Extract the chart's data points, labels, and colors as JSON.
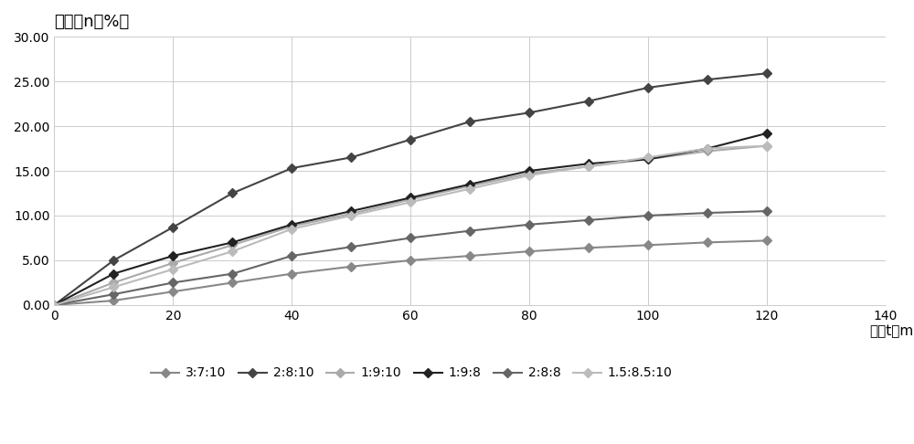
{
  "title_y": "析水率n（%）",
  "xlabel": "时间t（min）",
  "x_ticks": [
    0,
    20,
    40,
    60,
    80,
    100,
    120,
    140
  ],
  "y_ticks": [
    0.0,
    5.0,
    10.0,
    15.0,
    20.0,
    25.0,
    30.0
  ],
  "xlim": [
    0,
    140
  ],
  "ylim": [
    0,
    30
  ],
  "series": [
    {
      "label": "3:7:10",
      "color": "#888888",
      "marker": "D",
      "markersize": 5,
      "linewidth": 1.5,
      "x": [
        0,
        10,
        20,
        30,
        40,
        50,
        60,
        70,
        80,
        90,
        100,
        110,
        120
      ],
      "y": [
        0,
        0.5,
        1.5,
        2.5,
        3.5,
        4.3,
        5.0,
        5.5,
        6.0,
        6.4,
        6.7,
        7.0,
        7.2
      ]
    },
    {
      "label": "2:8:10",
      "color": "#444444",
      "marker": "D",
      "markersize": 5,
      "linewidth": 1.5,
      "x": [
        0,
        10,
        20,
        30,
        40,
        50,
        60,
        70,
        80,
        90,
        100,
        110,
        120
      ],
      "y": [
        0,
        5.0,
        8.7,
        12.5,
        15.3,
        16.5,
        18.5,
        20.5,
        21.5,
        22.8,
        24.3,
        25.2,
        25.9
      ]
    },
    {
      "label": "1:9:10",
      "color": "#aaaaaa",
      "marker": "D",
      "markersize": 5,
      "linewidth": 1.5,
      "x": [
        0,
        10,
        20,
        30,
        40,
        50,
        60,
        70,
        80,
        90,
        100,
        110,
        120
      ],
      "y": [
        0,
        2.5,
        4.7,
        6.7,
        8.8,
        10.2,
        11.8,
        13.3,
        14.7,
        15.5,
        16.3,
        17.2,
        17.8
      ]
    },
    {
      "label": "1:9:8",
      "color": "#222222",
      "marker": "D",
      "markersize": 5,
      "linewidth": 1.5,
      "x": [
        0,
        10,
        20,
        30,
        40,
        50,
        60,
        70,
        80,
        90,
        100,
        110,
        120
      ],
      "y": [
        0,
        3.5,
        5.5,
        7.0,
        9.0,
        10.5,
        12.0,
        13.5,
        15.0,
        15.8,
        16.3,
        17.5,
        19.2
      ]
    },
    {
      "label": "2:8:8",
      "color": "#666666",
      "marker": "D",
      "markersize": 5,
      "linewidth": 1.5,
      "x": [
        0,
        10,
        20,
        30,
        40,
        50,
        60,
        70,
        80,
        90,
        100,
        110,
        120
      ],
      "y": [
        0,
        1.2,
        2.5,
        3.5,
        5.5,
        6.5,
        7.5,
        8.3,
        9.0,
        9.5,
        10.0,
        10.3,
        10.5
      ]
    },
    {
      "label": "1.5:8.5:10",
      "color": "#bbbbbb",
      "marker": "D",
      "markersize": 5,
      "linewidth": 1.5,
      "x": [
        0,
        10,
        20,
        30,
        40,
        50,
        60,
        70,
        80,
        90,
        100,
        110,
        120
      ],
      "y": [
        0,
        2.0,
        4.0,
        6.0,
        8.5,
        10.0,
        11.5,
        13.0,
        14.5,
        15.5,
        16.5,
        17.5,
        17.8
      ]
    }
  ],
  "background_color": "#ffffff",
  "grid_color": "#cccccc",
  "figsize": [
    10,
    4.86
  ],
  "dpi": 100,
  "title_fontsize": 13,
  "xlabel_fontsize": 11,
  "tick_fontsize": 10,
  "legend_fontsize": 10
}
